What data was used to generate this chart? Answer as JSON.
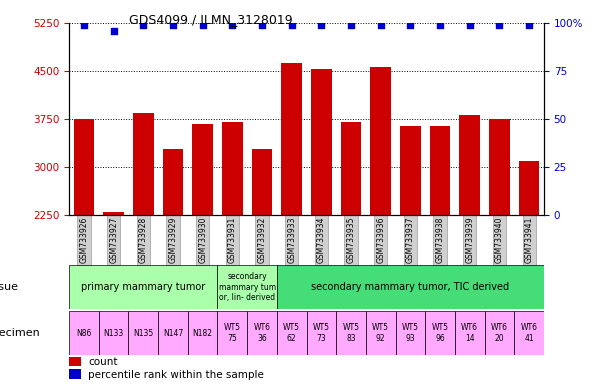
{
  "title": "GDS4099 / ILMN_3128019",
  "samples": [
    "GSM733926",
    "GSM733927",
    "GSM733928",
    "GSM733929",
    "GSM733930",
    "GSM733931",
    "GSM733932",
    "GSM733933",
    "GSM733934",
    "GSM733935",
    "GSM733936",
    "GSM733937",
    "GSM733938",
    "GSM733939",
    "GSM733940",
    "GSM733941"
  ],
  "counts": [
    3750,
    2300,
    3850,
    3280,
    3680,
    3700,
    3280,
    4620,
    4530,
    3700,
    4570,
    3640,
    3640,
    3820,
    3750,
    3100
  ],
  "percentile_ranks": [
    99,
    96,
    99,
    99,
    99,
    99,
    99,
    99,
    99,
    99,
    99,
    99,
    99,
    99,
    99,
    99
  ],
  "ylim_left": [
    2250,
    5250
  ],
  "ylim_right": [
    0,
    100
  ],
  "yticks_left": [
    2250,
    3000,
    3750,
    4500,
    5250
  ],
  "yticks_right": [
    0,
    25,
    50,
    75,
    100
  ],
  "bar_color": "#cc0000",
  "dot_color": "#0000cc",
  "tissue_groups": [
    {
      "label": "primary mammary tumor",
      "start": 0,
      "end": 4,
      "color": "#aaffaa"
    },
    {
      "label": "secondary\nmammary tum\nor, lin- derived",
      "start": 5,
      "end": 6,
      "color": "#aaffaa"
    },
    {
      "label": "secondary mammary tumor, TIC derived",
      "start": 7,
      "end": 15,
      "color": "#44dd77"
    }
  ],
  "specimen_labels": [
    "N86",
    "N133",
    "N135",
    "N147",
    "N182",
    "WT5\n75",
    "WT6\n36",
    "WT5\n62",
    "WT5\n73",
    "WT5\n83",
    "WT5\n92",
    "WT5\n93",
    "WT5\n96",
    "WT6\n14",
    "WT6\n20",
    "WT6\n41"
  ],
  "specimen_bg": [
    "#ffaaff",
    "#ffaaff",
    "#ffaaff",
    "#ffaaff",
    "#ffaaff",
    "#ffaaff",
    "#ffaaff",
    "#ffaaff",
    "#ffaaff",
    "#ffaaff",
    "#ffaaff",
    "#ffaaff",
    "#ffaaff",
    "#ffaaff",
    "#ffaaff",
    "#ffaaff"
  ],
  "specimen_bg_wt5": "#ffaaff",
  "specimen_bg_wt6": "#ffaaff",
  "legend_count_color": "#cc0000",
  "legend_rank_color": "#0000cc",
  "background_color": "#ffffff",
  "tick_label_color_left": "#cc0000",
  "tick_label_color_right": "#0000cc",
  "xtick_bg": "#d0d0d0"
}
